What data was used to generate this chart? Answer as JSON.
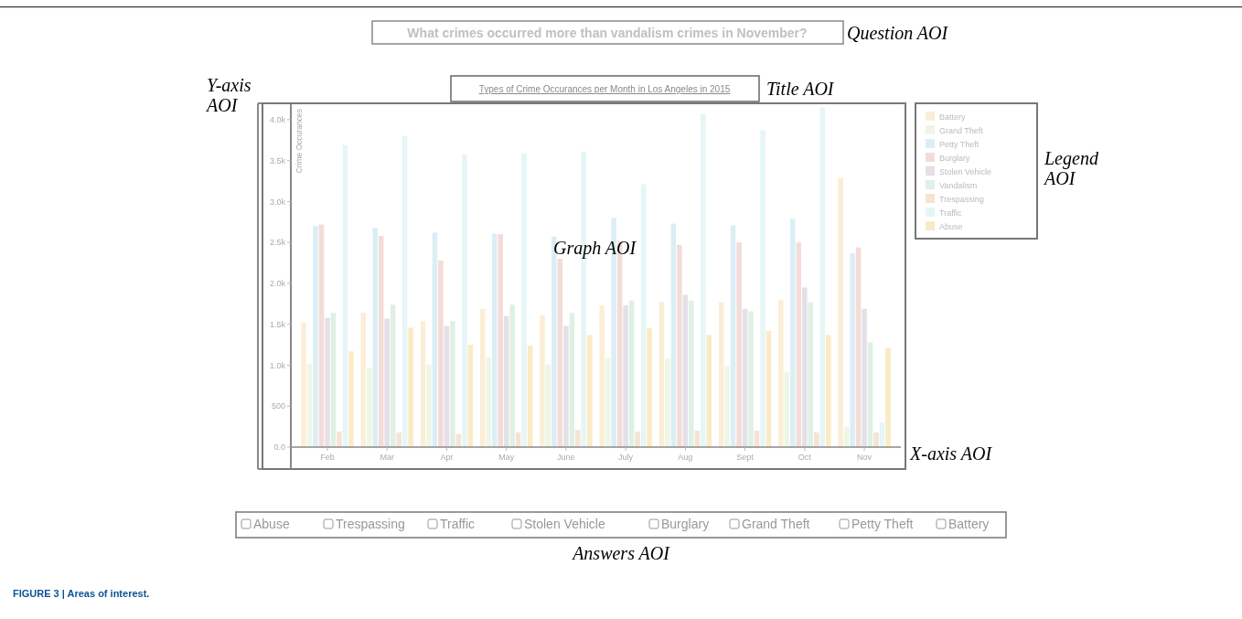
{
  "chart_data": {
    "type": "bar",
    "title": "Types of Crime Occurances per Month in Los Angeles in 2015",
    "ylabel": "Crime Occurances",
    "categories": [
      "Feb",
      "Mar",
      "Apr",
      "May",
      "June",
      "July",
      "Aug",
      "Sept",
      "Oct",
      "Nov"
    ],
    "series": [
      {
        "name": "Battery",
        "color": "#fbeed6",
        "values": [
          1520,
          1640,
          1540,
          1690,
          1610,
          1730,
          1770,
          1770,
          1800,
          3290
        ]
      },
      {
        "name": "Grand Theft",
        "color": "#eef6e6",
        "values": [
          1020,
          970,
          1010,
          1100,
          1010,
          1090,
          1080,
          990,
          920,
          250
        ]
      },
      {
        "name": "Petty Theft",
        "color": "#dceef5",
        "values": [
          2700,
          2680,
          2620,
          2610,
          2570,
          2800,
          2730,
          2710,
          2790,
          2370
        ]
      },
      {
        "name": "Burglary",
        "color": "#f3dcd8",
        "values": [
          2720,
          2580,
          2280,
          2600,
          2300,
          2520,
          2470,
          2500,
          2500,
          2440
        ]
      },
      {
        "name": "Stolen Vehicle",
        "color": "#e3e0e7",
        "values": [
          1580,
          1570,
          1480,
          1600,
          1480,
          1730,
          1860,
          1690,
          1950,
          1690
        ]
      },
      {
        "name": "Vandalism",
        "color": "#dff0e4",
        "values": [
          1640,
          1740,
          1540,
          1740,
          1640,
          1790,
          1790,
          1660,
          1770,
          1280
        ]
      },
      {
        "name": "Trespassing",
        "color": "#f5e3d4",
        "values": [
          190,
          180,
          160,
          180,
          210,
          190,
          200,
          200,
          180,
          180
        ]
      },
      {
        "name": "Traffic",
        "color": "#e6f5f6",
        "values": [
          3690,
          3800,
          3580,
          3590,
          3610,
          3210,
          4070,
          3870,
          4150,
          300
        ]
      },
      {
        "name": "Abuse",
        "color": "#faebc6",
        "values": [
          1170,
          1460,
          1250,
          1240,
          1370,
          1450,
          1370,
          1420,
          1370,
          1210
        ]
      }
    ],
    "ylim": [
      0,
      4200
    ],
    "yticks": [
      {
        "value": 0,
        "label": "0.0"
      },
      500,
      {
        "value": 1000,
        "label": "1.0k"
      },
      {
        "value": 1500,
        "label": "1.5k"
      },
      {
        "value": 2000,
        "label": "2.0k"
      },
      {
        "value": 2500,
        "label": "2.5k"
      },
      {
        "value": 3000,
        "label": "3.0k"
      },
      {
        "value": 3500,
        "label": "3.5k"
      },
      {
        "value": 4000,
        "label": "4.0k"
      }
    ],
    "grid": false,
    "legend": "right",
    "annotations": [
      "What crimes occurred more than vandalism crimes in November?",
      "Question AOI",
      "Y-axis AOI",
      "Title AOI",
      "Graph AOI",
      "Legend AOI",
      "X-axis AOI",
      "Abuse",
      "Trespassing",
      "Traffic",
      "Stolen Vehicle",
      "Burglary",
      "Grand Theft",
      "Petty Theft",
      "Battery",
      "Answers AOI",
      "FIGURE 3 | Areas of interest."
    ]
  }
}
